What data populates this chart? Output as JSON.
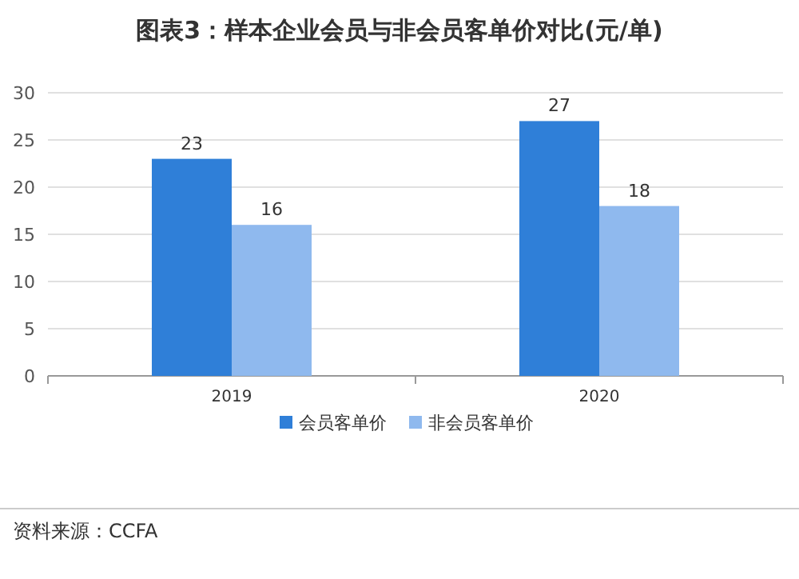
{
  "chart_data": {
    "type": "bar",
    "title": "图表3：样本企业会员与非会员客单价对比(元/单)",
    "categories": [
      "2019",
      "2020"
    ],
    "series": [
      {
        "name": "会员客单价",
        "color": "#2f7fd8",
        "values": [
          23,
          27
        ]
      },
      {
        "name": "非会员客单价",
        "color": "#8fb9ee",
        "values": [
          16,
          18
        ]
      }
    ],
    "ylim": [
      0,
      30
    ],
    "yticks": [
      0,
      5,
      10,
      15,
      20,
      25,
      30
    ],
    "grid": "y",
    "legend": "bottom",
    "data_labels": true,
    "annotations": [
      "资料来源：CCFA"
    ]
  }
}
